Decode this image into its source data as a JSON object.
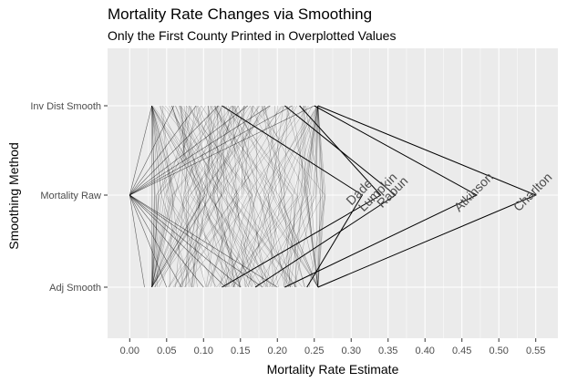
{
  "chart_data": {
    "type": "line",
    "title": "Mortality Rate Changes via Smoothing",
    "subtitle": "Only the First County Printed in Overplotted Values",
    "xlabel": "Mortality Rate Estimate",
    "ylabel": "Smoothing Method",
    "xlim": [
      -0.03,
      0.58
    ],
    "x_ticks": [
      "0.00",
      "0.05",
      "0.10",
      "0.15",
      "0.20",
      "0.25",
      "0.30",
      "0.35",
      "0.40",
      "0.45",
      "0.50",
      "0.55"
    ],
    "y_categories": [
      "Inv Dist Smooth",
      "Mortality Raw",
      "Adj Smooth"
    ],
    "grid": true,
    "background": "#ebebeb",
    "grid_color": "#ffffff",
    "line_color": "#000000",
    "highlighted_counties": [
      {
        "name": "Charlton",
        "raw": 0.55,
        "inv_dist": 0.255,
        "adj": 0.255
      },
      {
        "name": "Atkinson",
        "raw": 0.47,
        "inv_dist": 0.25,
        "adj": 0.21
      },
      {
        "name": "Rabun",
        "raw": 0.36,
        "inv_dist": 0.21,
        "adj": 0.17
      },
      {
        "name": "Lumpkin",
        "raw": 0.34,
        "inv_dist": 0.23,
        "adj": 0.125
      },
      {
        "name": "Dade",
        "raw": 0.315,
        "inv_dist": 0.125,
        "adj": 0.24
      }
    ],
    "counties_at_zero": [
      {
        "inv_dist": 0.03,
        "adj": 0.02
      },
      {
        "inv_dist": 0.06,
        "adj": 0.05
      },
      {
        "inv_dist": 0.09,
        "adj": 0.07
      },
      {
        "inv_dist": 0.12,
        "adj": 0.1
      },
      {
        "inv_dist": 0.16,
        "adj": 0.13
      },
      {
        "inv_dist": 0.19,
        "adj": 0.15
      },
      {
        "inv_dist": 0.22,
        "adj": 0.18
      },
      {
        "inv_dist": 0.25,
        "adj": 0.2
      }
    ],
    "background_county_count": 150
  }
}
